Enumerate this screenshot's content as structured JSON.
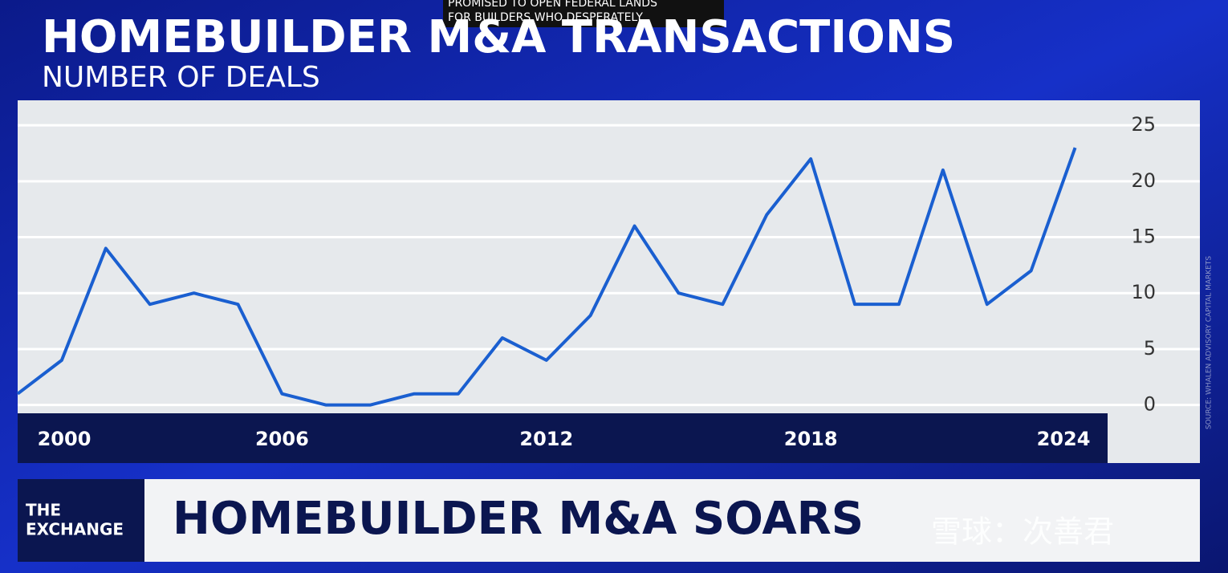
{
  "caption": [
    "PROMISED TO OPEN FEDERAL LANDS",
    "FOR BUILDERS WHO DESPERATELY"
  ],
  "chart_data": {
    "type": "line",
    "title": "HOMEBUILDER M&A TRANSACTIONS",
    "subtitle": "NUMBER OF DEALS",
    "x": [
      2000,
      2001,
      2002,
      2003,
      2004,
      2005,
      2006,
      2007,
      2008,
      2009,
      2010,
      2011,
      2012,
      2013,
      2014,
      2015,
      2016,
      2017,
      2018,
      2019,
      2020,
      2021,
      2022,
      2023,
      2024
    ],
    "series": [
      {
        "name": "Deals",
        "color": "#1a5fd0",
        "values": [
          1,
          4,
          14,
          9,
          10,
          9,
          1,
          0,
          0,
          1,
          1,
          6,
          4,
          8,
          16,
          10,
          9,
          17,
          22,
          9,
          9,
          21,
          9,
          12,
          23
        ]
      }
    ],
    "xlim": [
      2000,
      2024.5
    ],
    "xticks": [
      2000,
      2006,
      2012,
      2018,
      2024
    ],
    "ylim": [
      -0.6,
      25.8
    ],
    "yticks": [
      0,
      5,
      10,
      15,
      20,
      25
    ],
    "grid": true,
    "source": "SOURCE: WHALEN ADVISORY CAPITAL MARKETS"
  },
  "banner": {
    "show": [
      "THE",
      "EXCHANGE"
    ],
    "headline": "HOMEBUILDER M&A SOARS"
  },
  "watermark": "雪球：次善君"
}
